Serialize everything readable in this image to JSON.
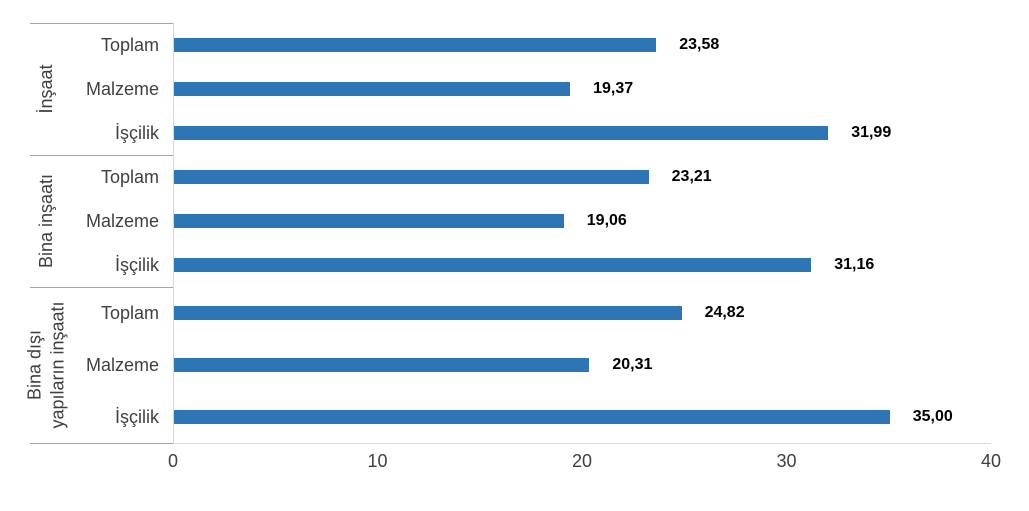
{
  "chart_data": {
    "type": "bar",
    "orientation": "horizontal",
    "xlim": [
      0,
      40
    ],
    "x_ticks": [
      "0",
      "10",
      "20",
      "30",
      "40"
    ],
    "grid": false,
    "legend": false,
    "bar_color": "#2E75B6",
    "groups": [
      {
        "label": "İnşaat",
        "categories": [
          "Toplam",
          "Malzeme",
          "İşçilik"
        ],
        "values": [
          23.58,
          19.37,
          31.99
        ],
        "value_labels": [
          "23,58",
          "19,37",
          "31,99"
        ]
      },
      {
        "label": "Bina inşaatı",
        "categories": [
          "Toplam",
          "Malzeme",
          "İşçilik"
        ],
        "values": [
          23.21,
          19.06,
          31.16
        ],
        "value_labels": [
          "23,21",
          "19,06",
          "31,16"
        ]
      },
      {
        "label": "Bina dışı\nyapıların inşaatı",
        "categories": [
          "Toplam",
          "Malzeme",
          "İşçilik"
        ],
        "values": [
          24.82,
          20.31,
          35.0
        ],
        "value_labels": [
          "24,82",
          "20,31",
          "35,00"
        ]
      }
    ],
    "colors": {
      "bar": "#2E75B6",
      "group_divider_line": "#a6a6a6",
      "axis_line": "#d9d9d9",
      "label_text": "#404040",
      "value_text": "#000000"
    }
  }
}
